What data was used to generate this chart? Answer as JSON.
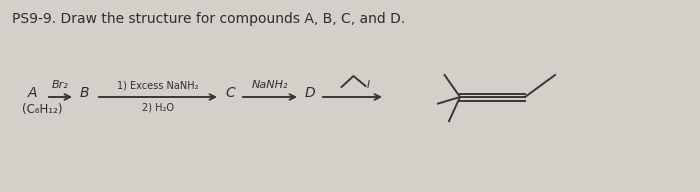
{
  "title": "PS9-9. Draw the structure for compounds A, B, C, and D.",
  "bg_color": "#d3cfc9",
  "text_color": "#2e2e2e",
  "label_A": "A",
  "label_B": "B",
  "label_C": "C",
  "label_D": "D",
  "formula": "(C₆H₁₂)",
  "reagent1": "Br₂",
  "reagent2_line1": "1) Excess NaNH₂",
  "reagent2_line2": "2) H₂O",
  "reagent3": "NaNH₂",
  "reagent4": "I",
  "line_color": "#3a3632"
}
